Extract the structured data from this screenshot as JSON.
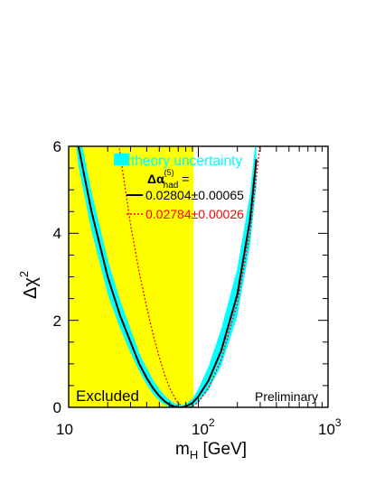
{
  "colors": {
    "excluded_fill": "#ffff00",
    "band_fill": "#00ffff",
    "main_curve": "#000000",
    "alt_curve": "#ff0000",
    "legend_theory_text": "#00ffff",
    "legend_alt_text": "#ff0000"
  },
  "chart_data": {
    "type": "line",
    "x_scale": "log",
    "xlim": [
      10,
      1000
    ],
    "ylim": [
      0,
      6
    ],
    "xlabel": {
      "main": "m",
      "sub": "H",
      "unit": " [GeV]"
    },
    "ylabel": {
      "delta": "Δ",
      "chi": "χ",
      "sup": "2"
    },
    "x_ticks": [
      {
        "base": "10",
        "exp": ""
      },
      {
        "base": "10",
        "exp": "2"
      },
      {
        "base": "10",
        "exp": "3"
      }
    ],
    "y_ticks": [
      "0",
      "2",
      "4",
      "6"
    ],
    "excluded_region": {
      "x_min": 10,
      "x_max": 92,
      "label": "Excluded"
    },
    "annotation": "Preliminary",
    "legend": {
      "theory": "theory uncertainty",
      "header": {
        "main": "Δα",
        "sub": "had",
        "sup": "(5)",
        "tail": " ="
      },
      "main_entry": "0.02804±0.00065",
      "alt_entry": "0.02784±0.00026"
    },
    "series": [
      {
        "name": "0.02804±0.00065",
        "style": "solid",
        "x": [
          10,
          11.9,
          15,
          20,
          25,
          30,
          35,
          40,
          45,
          50,
          55,
          60,
          65,
          70,
          75,
          76,
          80,
          90,
          100,
          120,
          150,
          200,
          250,
          280
        ],
        "y": [
          8.0,
          6.0,
          4.5,
          3.0,
          2.1,
          1.5,
          1.0,
          0.67,
          0.43,
          0.26,
          0.14,
          0.06,
          0.02,
          0.003,
          0.0,
          0.0,
          0.02,
          0.1,
          0.25,
          0.62,
          1.3,
          2.6,
          4.3,
          5.7
        ]
      },
      {
        "name": "0.02784±0.00026",
        "style": "dotted",
        "x": [
          24,
          25,
          30,
          35,
          40,
          45,
          50,
          55,
          60,
          65,
          70,
          75,
          80,
          84,
          90,
          100,
          120,
          150,
          200,
          250,
          300
        ],
        "y": [
          6.2,
          5.8,
          4.2,
          3.1,
          2.3,
          1.65,
          1.15,
          0.75,
          0.45,
          0.24,
          0.1,
          0.03,
          0.004,
          0.0,
          0.02,
          0.12,
          0.45,
          1.1,
          2.4,
          4.0,
          6.1
        ]
      }
    ],
    "band": {
      "name": "theory uncertainty",
      "x": [
        10,
        11.9,
        15,
        20,
        25,
        30,
        35,
        40,
        45,
        50,
        55,
        60,
        65,
        70,
        75,
        76,
        80,
        90,
        100,
        120,
        150,
        200,
        250,
        280
      ],
      "upper": [
        8.5,
        6.45,
        4.95,
        3.4,
        2.45,
        1.8,
        1.25,
        0.9,
        0.62,
        0.42,
        0.27,
        0.17,
        0.1,
        0.06,
        0.05,
        0.05,
        0.08,
        0.2,
        0.42,
        0.95,
        1.8,
        3.2,
        4.9,
        6.3
      ],
      "lower": [
        7.5,
        5.55,
        4.05,
        2.6,
        1.8,
        1.25,
        0.83,
        0.52,
        0.3,
        0.15,
        0.06,
        0.01,
        0.0,
        0.0,
        0.0,
        0.0,
        0.0,
        0.03,
        0.12,
        0.4,
        0.95,
        2.1,
        3.7,
        5.1
      ]
    }
  }
}
